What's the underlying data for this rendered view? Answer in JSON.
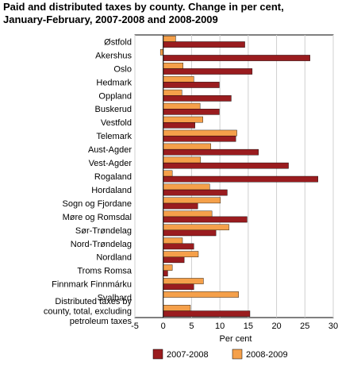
{
  "chart_data": {
    "type": "bar",
    "orientation": "horizontal",
    "title_line1": "Paid and distributed taxes by county. Change in per cent,",
    "title_line2": "January-February, 2007-2008 and 2008-2009",
    "xlabel": "Per cent",
    "xlim": [
      -5,
      30
    ],
    "xticks": [
      -5,
      0,
      5,
      10,
      15,
      20,
      25,
      30
    ],
    "grid": "vertical",
    "legend_position": "bottom",
    "categories": [
      [
        "Østfold"
      ],
      [
        "Akershus"
      ],
      [
        "Oslo"
      ],
      [
        "Hedmark"
      ],
      [
        "Oppland"
      ],
      [
        "Buskerud"
      ],
      [
        "Vestfold"
      ],
      [
        "Telemark"
      ],
      [
        "Aust-Agder"
      ],
      [
        "Vest-Agder"
      ],
      [
        "Rogaland"
      ],
      [
        "Hordaland"
      ],
      [
        "Sogn og Fjordane"
      ],
      [
        "Møre og Romsdal"
      ],
      [
        "Sør-Trøndelag"
      ],
      [
        "Nord-Trøndelag"
      ],
      [
        "Nordland"
      ],
      [
        "Troms Romsa"
      ],
      [
        "Finnmark Finnmárku"
      ],
      [
        "Svalbard"
      ],
      [
        "Distributed taxes by",
        "county, total, excluding",
        "petroleum taxes"
      ]
    ],
    "series": [
      {
        "name": "2007-2008",
        "color": "#9a1c1f",
        "values": [
          14.4,
          25.9,
          15.7,
          9.9,
          12.0,
          9.9,
          5.6,
          12.8,
          16.8,
          22.1,
          27.3,
          11.3,
          6.1,
          14.8,
          9.3,
          5.4,
          3.7,
          0.8,
          5.4,
          null,
          15.3
        ]
      },
      {
        "name": "2008-2009",
        "color": "#f5a04a",
        "values": [
          2.2,
          -0.5,
          3.5,
          5.4,
          3.3,
          6.5,
          7.0,
          13.0,
          8.4,
          6.6,
          1.6,
          8.2,
          10.1,
          8.6,
          11.6,
          3.4,
          6.2,
          1.6,
          7.1,
          13.3,
          4.8
        ]
      }
    ]
  }
}
